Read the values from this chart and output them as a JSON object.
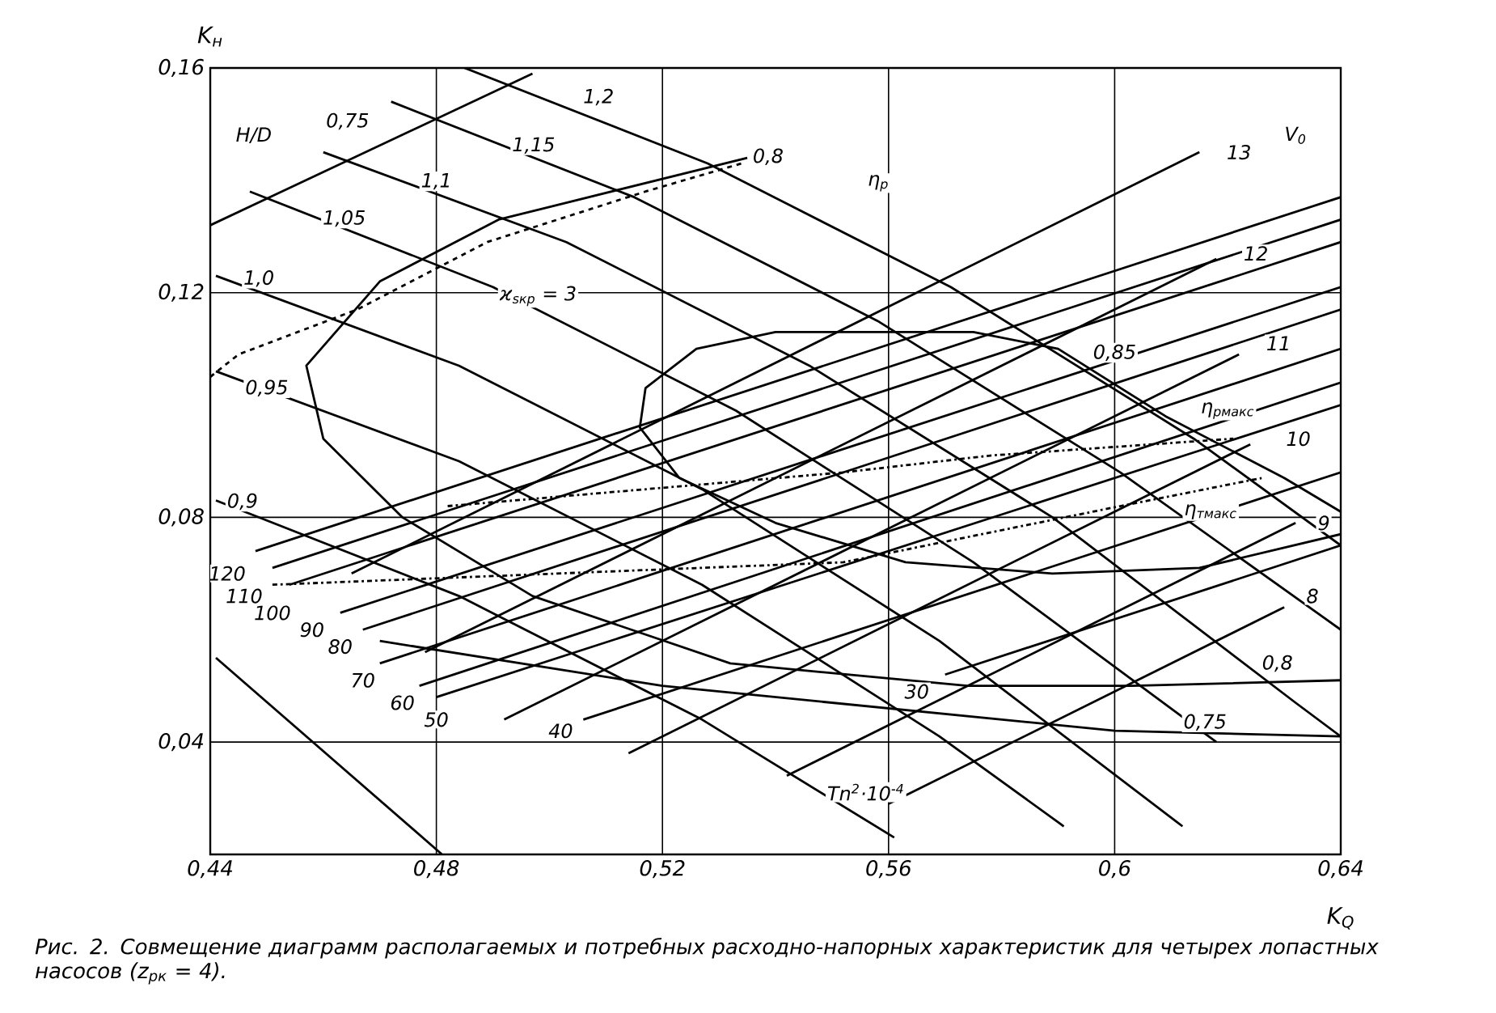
{
  "chart_data": {
    "type": "line",
    "xlabel": "K$_{Q}$",
    "ylabel": "K$_{н}$",
    "xlim": [
      0.44,
      0.64
    ],
    "ylim": [
      0.02,
      0.16
    ],
    "xticks": [
      {
        "value": 0.44,
        "label": "0,44"
      },
      {
        "value": 0.48,
        "label": "0,48"
      },
      {
        "value": 0.52,
        "label": "0,52"
      },
      {
        "value": 0.56,
        "label": "0,56"
      },
      {
        "value": 0.6,
        "label": "0,6"
      },
      {
        "value": 0.64,
        "label": "0,64"
      }
    ],
    "yticks": [
      {
        "value": 0.04,
        "label": "0,04"
      },
      {
        "value": 0.08,
        "label": "0,08"
      },
      {
        "value": 0.12,
        "label": "0,12"
      },
      {
        "value": 0.16,
        "label": "0,16"
      }
    ],
    "grid": true,
    "series": [
      {
        "color": "#000000",
        "line_style": "solid",
        "x": [
          0.485,
          0.528,
          0.571,
          0.614,
          0.64
        ],
        "values": [
          0.16,
          0.143,
          0.121,
          0.094,
          0.075
        ]
      },
      {
        "color": "#000000",
        "line_style": "solid",
        "x": [
          0.472,
          0.515,
          0.558,
          0.601,
          0.64
        ],
        "values": [
          0.154,
          0.137,
          0.115,
          0.088,
          0.06
        ]
      },
      {
        "color": "#000000",
        "line_style": "solid",
        "x": [
          0.46,
          0.503,
          0.546,
          0.589,
          0.632,
          0.64
        ],
        "values": [
          0.145,
          0.129,
          0.107,
          0.08,
          0.047,
          0.041
        ]
      },
      {
        "color": "#000000",
        "line_style": "solid",
        "x": [
          0.447,
          0.49,
          0.533,
          0.575,
          0.618
        ],
        "values": [
          0.138,
          0.121,
          0.099,
          0.072,
          0.04
        ]
      },
      {
        "color": "#000000",
        "line_style": "solid",
        "x": [
          0.441,
          0.484,
          0.527,
          0.569,
          0.612
        ],
        "values": [
          0.123,
          0.107,
          0.085,
          0.058,
          0.025
        ]
      },
      {
        "color": "#000000",
        "line_style": "solid",
        "x": [
          0.441,
          0.484,
          0.527,
          0.569,
          0.591
        ],
        "values": [
          0.106,
          0.09,
          0.068,
          0.041,
          0.025
        ]
      },
      {
        "color": "#000000",
        "line_style": "solid",
        "x": [
          0.441,
          0.484,
          0.527,
          0.561
        ],
        "values": [
          0.083,
          0.066,
          0.044,
          0.023
        ]
      },
      {
        "color": "#000000",
        "line_style": "solid",
        "x": [
          0.441,
          0.481
        ],
        "values": [
          0.055,
          0.02
        ]
      },
      {
        "color": "#000000",
        "line_style": "solid",
        "x": [
          0.448,
          0.64
        ],
        "values": [
          0.074,
          0.137
        ]
      },
      {
        "color": "#000000",
        "line_style": "solid",
        "x": [
          0.451,
          0.64
        ],
        "values": [
          0.071,
          0.133
        ]
      },
      {
        "color": "#000000",
        "line_style": "solid",
        "x": [
          0.454,
          0.64
        ],
        "values": [
          0.068,
          0.129
        ]
      },
      {
        "color": "#000000",
        "line_style": "solid",
        "x": [
          0.463,
          0.64
        ],
        "values": [
          0.063,
          0.121
        ]
      },
      {
        "color": "#000000",
        "line_style": "solid",
        "x": [
          0.467,
          0.64
        ],
        "values": [
          0.06,
          0.117
        ]
      },
      {
        "color": "#000000",
        "line_style": "solid",
        "x": [
          0.47,
          0.64
        ],
        "values": [
          0.054,
          0.11
        ]
      },
      {
        "color": "#000000",
        "line_style": "solid",
        "x": [
          0.477,
          0.64
        ],
        "values": [
          0.05,
          0.104
        ]
      },
      {
        "color": "#000000",
        "line_style": "solid",
        "x": [
          0.48,
          0.64
        ],
        "values": [
          0.048,
          0.1
        ]
      },
      {
        "color": "#000000",
        "line_style": "solid",
        "x": [
          0.506,
          0.64
        ],
        "values": [
          0.044,
          0.088
        ]
      },
      {
        "color": "#000000",
        "line_style": "solid",
        "x": [
          0.57,
          0.64
        ],
        "values": [
          0.052,
          0.075
        ]
      },
      {
        "color": "#000000",
        "line_style": "solid",
        "x": [
          0.465,
          0.615
        ],
        "values": [
          0.07,
          0.145
        ]
      },
      {
        "color": "#000000",
        "line_style": "solid",
        "x": [
          0.478,
          0.618
        ],
        "values": [
          0.056,
          0.126
        ]
      },
      {
        "color": "#000000",
        "line_style": "solid",
        "x": [
          0.492,
          0.622
        ],
        "values": [
          0.044,
          0.109
        ]
      },
      {
        "color": "#000000",
        "line_style": "solid",
        "x": [
          0.514,
          0.624
        ],
        "values": [
          0.038,
          0.093
        ]
      },
      {
        "color": "#000000",
        "line_style": "solid",
        "x": [
          0.542,
          0.632
        ],
        "values": [
          0.034,
          0.079
        ]
      },
      {
        "color": "#000000",
        "line_style": "solid",
        "x": [
          0.56,
          0.63
        ],
        "values": [
          0.029,
          0.064
        ]
      },
      {
        "color": "#000000",
        "line_style": "solid",
        "x": [
          0.44,
          0.497
        ],
        "values": [
          0.132,
          0.159
        ]
      },
      {
        "color": "#000000",
        "line_style": "solid",
        "x": [
          0.47,
          0.52,
          0.56,
          0.6,
          0.64
        ],
        "values": [
          0.058,
          0.05,
          0.046,
          0.042,
          0.041
        ]
      },
      {
        "color": "#000000",
        "line_style": "solid",
        "x": [
          0.535,
          0.491,
          0.47,
          0.457,
          0.46,
          0.474,
          0.497,
          0.532,
          0.574,
          0.603,
          0.64
        ],
        "values": [
          0.144,
          0.133,
          0.122,
          0.107,
          0.094,
          0.08,
          0.066,
          0.054,
          0.05,
          0.05,
          0.051
        ]
      },
      {
        "color": "#000000",
        "line_style": "solid",
        "x": [
          0.64,
          0.63,
          0.609,
          0.59,
          0.575,
          0.557,
          0.54,
          0.526,
          0.517,
          0.516,
          0.523,
          0.54,
          0.563,
          0.589,
          0.615,
          0.64
        ],
        "values": [
          0.081,
          0.087,
          0.098,
          0.11,
          0.113,
          0.113,
          0.113,
          0.11,
          0.103,
          0.096,
          0.087,
          0.079,
          0.072,
          0.07,
          0.071,
          0.077
        ]
      },
      {
        "color": "#000000",
        "line_style": "dashed",
        "x": [
          0.44,
          0.445,
          0.466,
          0.489,
          0.517,
          0.534
        ],
        "values": [
          0.105,
          0.109,
          0.117,
          0.129,
          0.138,
          0.143
        ]
      },
      {
        "color": "#000000",
        "line_style": "dashdot",
        "x": [
          0.482,
          0.552,
          0.578,
          0.621
        ],
        "values": [
          0.082,
          0.088,
          0.091,
          0.094
        ]
      },
      {
        "color": "#000000",
        "line_style": "dashdot",
        "x": [
          0.451,
          0.552,
          0.601,
          0.626
        ],
        "values": [
          0.068,
          0.072,
          0.082,
          0.087
        ]
      }
    ],
    "annotations": [
      {
        "text": "H/D",
        "x": 0.4477,
        "y": 0.148
      },
      {
        "text": "0,75",
        "x": 0.4643,
        "y": 0.1505
      },
      {
        "text": "1,2",
        "x": 0.5087,
        "y": 0.1548
      },
      {
        "text": "1,15",
        "x": 0.4972,
        "y": 0.1462
      },
      {
        "text": "1,1",
        "x": 0.48,
        "y": 0.1398
      },
      {
        "text": "1,05",
        "x": 0.4637,
        "y": 0.1332
      },
      {
        "text": "1,0",
        "x": 0.4486,
        "y": 0.1225
      },
      {
        "text": "0,95",
        "x": 0.45,
        "y": 0.103
      },
      {
        "text": "0,9",
        "x": 0.4457,
        "y": 0.0828
      },
      {
        "text": "0,8",
        "x": 0.5387,
        "y": 0.1442
      },
      {
        "text": "0,85",
        "x": 0.6,
        "y": 0.1093
      },
      {
        "text": "0,8",
        "x": 0.6288,
        "y": 0.054
      },
      {
        "text": "0,75",
        "x": 0.616,
        "y": 0.0435
      },
      {
        "text": "η$_{р}$",
        "x": 0.5582,
        "y": 0.1395
      },
      "ϰ$_{sкр}$ = 3",
      {
        "text": "13",
        "x": 0.622,
        "y": 0.145
      },
      {
        "text": "12",
        "x": 0.625,
        "y": 0.127
      },
      {
        "text": "11",
        "x": 0.629,
        "y": 0.111
      },
      {
        "text": "10",
        "x": 0.6325,
        "y": 0.094
      },
      {
        "text": "9",
        "x": 0.637,
        "y": 0.079
      },
      {
        "text": "8",
        "x": 0.635,
        "y": 0.066
      },
      {
        "text": "V$_{0}$",
        "x": 0.632,
        "y": 0.148
      },
      {
        "text": "η$_{рмакс}$",
        "x": 0.62,
        "y": 0.099
      },
      {
        "text": "η$_{тмакс}$",
        "x": 0.617,
        "y": 0.081
      },
      {
        "text": "120",
        "x": 0.443,
        "y": 0.07
      },
      {
        "text": "110",
        "x": 0.446,
        "y": 0.066
      },
      {
        "text": "100",
        "x": 0.451,
        "y": 0.063
      },
      {
        "text": "90",
        "x": 0.458,
        "y": 0.06
      },
      {
        "text": "80",
        "x": 0.463,
        "y": 0.057
      },
      {
        "text": "70",
        "x": 0.467,
        "y": 0.051
      },
      {
        "text": "60",
        "x": 0.474,
        "y": 0.047
      },
      {
        "text": "50",
        "x": 0.48,
        "y": 0.044
      },
      {
        "text": "40",
        "x": 0.502,
        "y": 0.042
      },
      {
        "text": "30",
        "x": 0.565,
        "y": 0.049
      },
      "Tn$^{2}$·10$^{-4}$",
      "Рис. 2. Совмещение диаграмм располагаемых и потребных расходно-напорных характеристик для четырех лопастных насосов (z$_{рк}$ = 4)."
    ]
  }
}
